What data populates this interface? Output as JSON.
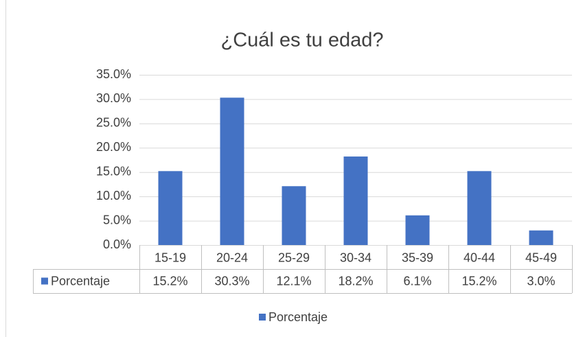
{
  "chart_data": {
    "type": "bar",
    "title": "¿Cuál es tu edad?",
    "categories": [
      "15-19",
      "20-24",
      "25-29",
      "30-34",
      "35-39",
      "40-44",
      "45-49"
    ],
    "series": [
      {
        "name": "Porcentaje",
        "color": "#4472c4",
        "values": [
          15.2,
          30.3,
          12.1,
          18.2,
          6.1,
          15.2,
          3.0
        ],
        "value_labels": [
          "15.2%",
          "30.3%",
          "12.1%",
          "18.2%",
          "6.1%",
          "15.2%",
          "3.0%"
        ]
      }
    ],
    "ylim": [
      0,
      35
    ],
    "yticks": [
      {
        "value": 0,
        "label": "0.0%"
      },
      {
        "value": 5,
        "label": "5.0%"
      },
      {
        "value": 10,
        "label": "10.0%"
      },
      {
        "value": 15,
        "label": "15.0%"
      },
      {
        "value": 20,
        "label": "20.0%"
      },
      {
        "value": 25,
        "label": "25.0%"
      },
      {
        "value": 30,
        "label": "30.0%"
      },
      {
        "value": 35,
        "label": "35.0%"
      }
    ],
    "grid": true,
    "legend": "bottom"
  }
}
